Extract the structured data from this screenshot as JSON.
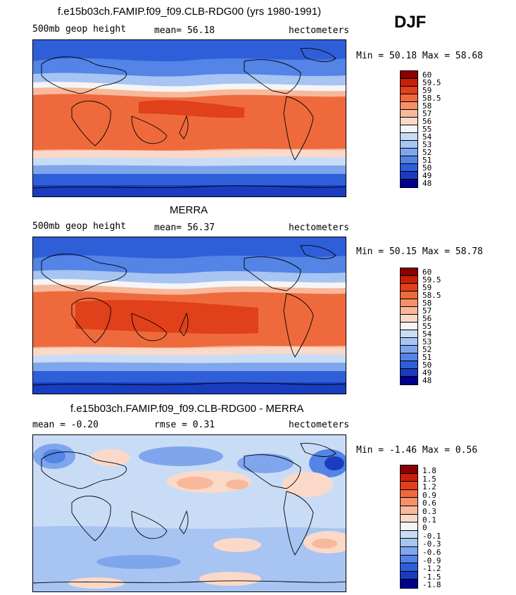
{
  "season": "DJF",
  "panels": [
    {
      "id": "model",
      "title": "f.e15b03ch.FAMIP.f09_f09.CLB-RDG00 (yrs 1980-1991)",
      "left_label": "500mb geop height",
      "center_label": "mean=  56.18",
      "right_label": "hectometers",
      "minmax": "Min =  50.18 Max =  58.68",
      "colorbar": {
        "colors": [
          "#8b0000",
          "#c8200a",
          "#e0401a",
          "#ee6a3c",
          "#f4916a",
          "#f8b89c",
          "#fbd9c8",
          "#f5f5f5",
          "#c9dcf6",
          "#a7c4f2",
          "#7fa6ec",
          "#5384e6",
          "#2f5fd8",
          "#1a3dc0",
          "#00008b"
        ],
        "labels": [
          "60",
          "59.5",
          "59",
          "58.5",
          "58",
          "57",
          "56",
          "55",
          "54",
          "53",
          "52",
          "51",
          "50",
          "49",
          "48"
        ]
      }
    },
    {
      "id": "obs",
      "title": "MERRA",
      "left_label": "500mb geop height",
      "center_label": "mean=  56.37",
      "right_label": "hectometers",
      "minmax": "Min =  50.15 Max =  58.78",
      "colorbar": {
        "colors": [
          "#8b0000",
          "#c8200a",
          "#e0401a",
          "#ee6a3c",
          "#f4916a",
          "#f8b89c",
          "#fbd9c8",
          "#f5f5f5",
          "#c9dcf6",
          "#a7c4f2",
          "#7fa6ec",
          "#5384e6",
          "#2f5fd8",
          "#1a3dc0",
          "#00008b"
        ],
        "labels": [
          "60",
          "59.5",
          "59",
          "58.5",
          "58",
          "57",
          "56",
          "55",
          "54",
          "53",
          "52",
          "51",
          "50",
          "49",
          "48"
        ]
      }
    },
    {
      "id": "diff",
      "title": "f.e15b03ch.FAMIP.f09_f09.CLB-RDG00 - MERRA",
      "left_label": "mean =  -0.20",
      "center_label": "rmse =    0.31",
      "right_label": "hectometers",
      "minmax": "Min =  -1.46 Max =    0.56",
      "colorbar": {
        "colors": [
          "#8b0000",
          "#c8200a",
          "#e0401a",
          "#ee6a3c",
          "#f4916a",
          "#f8b89c",
          "#fbd9c8",
          "#f5f5f5",
          "#c9dcf6",
          "#a7c4f2",
          "#7fa6ec",
          "#5384e6",
          "#2f5fd8",
          "#1a3dc0",
          "#00008b"
        ],
        "labels": [
          "1.8",
          "1.5",
          "1.2",
          "0.9",
          "0.6",
          "0.3",
          "0.1",
          "0",
          "-0.1",
          "-0.3",
          "-0.6",
          "-0.9",
          "-1.2",
          "-1.5",
          "-1.8"
        ]
      }
    }
  ]
}
